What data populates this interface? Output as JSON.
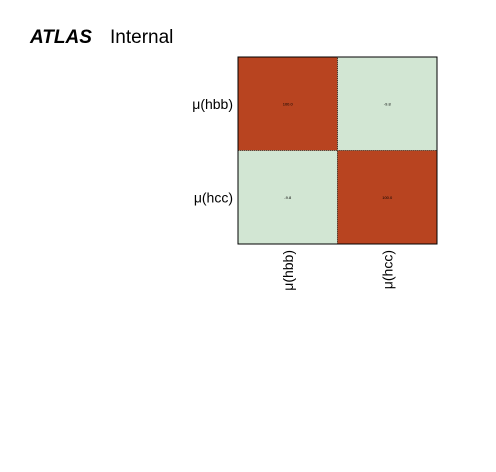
{
  "chart_data": {
    "type": "heatmap",
    "experiment": "ATLAS",
    "status": "Internal",
    "row_labels": [
      "μ(hbb)",
      "μ(hcc)"
    ],
    "col_labels": [
      "μ(hbb)",
      "μ(hcc)"
    ],
    "matrix": [
      [
        100.0,
        -9.8
      ],
      [
        -9.8,
        100.0
      ]
    ],
    "cell_text": [
      [
        "100.0",
        "-9.8"
      ],
      [
        "-9.8",
        "100.0"
      ]
    ],
    "colors": {
      "high": "#b84420",
      "low": "#d2e6d3",
      "frame": "#000000",
      "text": "#000000"
    }
  }
}
